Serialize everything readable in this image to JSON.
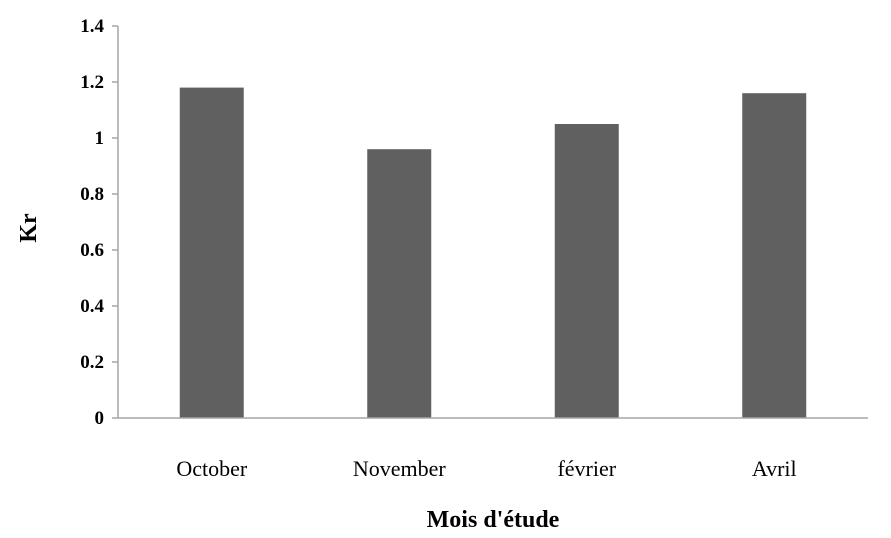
{
  "chart_data": {
    "type": "bar",
    "categories": [
      "October",
      "November",
      "février",
      "Avril"
    ],
    "values": [
      1.18,
      0.96,
      1.05,
      1.16
    ],
    "xlabel": "Mois d'étude",
    "ylabel": "Kr",
    "ylim": [
      0,
      1.4
    ],
    "yticks": [
      "0",
      "0.2",
      "0.4",
      "0.6",
      "0.8",
      "1",
      "1.2",
      "1.4"
    ],
    "grid": false,
    "legend": "none",
    "bar_color": "#606060"
  }
}
